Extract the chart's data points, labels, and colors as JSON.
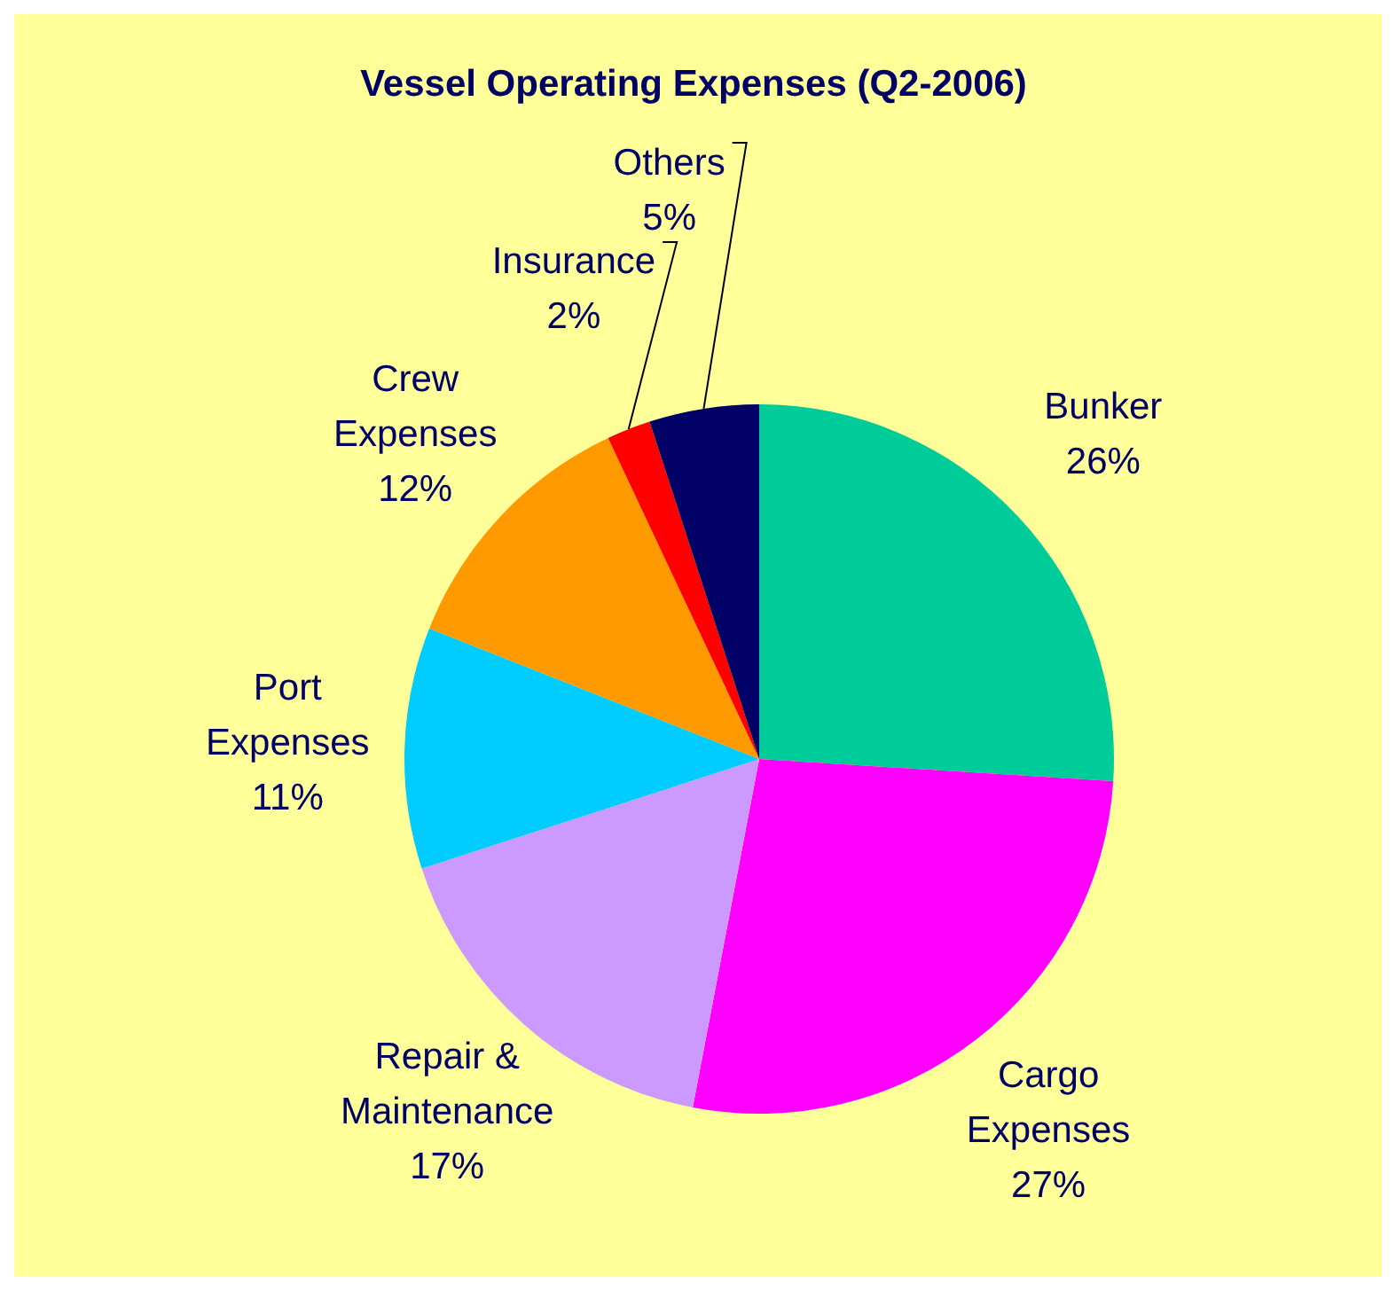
{
  "chart_data": {
    "type": "pie",
    "title": "Vessel Operating Expenses (Q2-2006)",
    "categories": [
      "Bunker",
      "Cargo Expenses",
      "Repair & Maintenance",
      "Port Expenses",
      "Crew Expenses",
      "Insurance",
      "Others"
    ],
    "values": [
      26,
      27,
      17,
      11,
      12,
      2,
      5
    ],
    "colors": [
      "#00cc99",
      "#ff00ff",
      "#cc99ff",
      "#00ccff",
      "#ff9900",
      "#ff0000",
      "#000066"
    ],
    "value_labels": [
      "26%",
      "27%",
      "17%",
      "11%",
      "12%",
      "2%",
      "5%"
    ],
    "legend": false
  }
}
